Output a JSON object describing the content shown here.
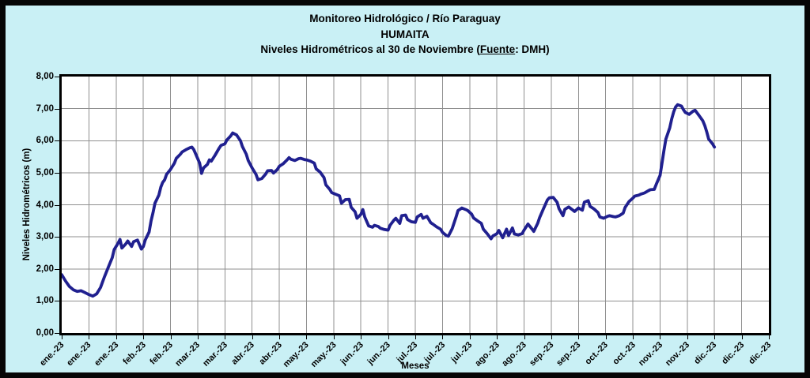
{
  "title": {
    "line1": "Monitoreo Hidrológico / Río Paraguay",
    "line2": "HUMAITA",
    "line3_prefix": "Niveles Hidrométricos  al 30 de Noviembre (",
    "line3_source": "Fuente",
    "line3_suffix": ": DMH)"
  },
  "colors": {
    "background": "#c9f0f5",
    "frame": "#060606",
    "plot_background": "#ffffff",
    "plot_border": "#000000",
    "gridline": "#8f8f8f",
    "line": "#20208f",
    "text": "#000000"
  },
  "chart_data": {
    "type": "line",
    "title": "Monitoreo Hidrológico / Río Paraguay - HUMAITA - Niveles Hidrométricos al 30 de Noviembre (Fuente: DMH)",
    "xlabel": "Meses",
    "ylabel": "Niveles Hidrométricos (m)",
    "ylim": [
      0,
      8
    ],
    "xlim_days": [
      1,
      365
    ],
    "grid": true,
    "legend": false,
    "y_tick_labels": [
      "8,00",
      "7,00",
      "6,00",
      "5,00",
      "4,00",
      "3,00",
      "2,00",
      "1,00",
      "0,00"
    ],
    "x_tick_days": [
      1,
      15,
      29,
      43,
      57,
      71,
      85,
      99,
      113,
      127,
      141,
      155,
      169,
      183,
      197,
      211,
      225,
      239,
      253,
      267,
      281,
      295,
      309,
      323,
      337,
      351,
      365
    ],
    "x_tick_labels": [
      "ene.-23",
      "ene.-23",
      "ene.-23",
      "feb.-23",
      "feb.-23",
      "mar.-23",
      "mar.-23",
      "abr.-23",
      "abr.-23",
      "may.-23",
      "may.-23",
      "jun.-23",
      "jun.-23",
      "jul.-23",
      "jul.-23",
      "jul.-23",
      "ago.-23",
      "ago.-23",
      "sep.-23",
      "sep.-23",
      "oct.-23",
      "oct.-23",
      "nov.-23",
      "nov.-23",
      "dic.-23",
      "dic.-23",
      "dic.-23"
    ],
    "series": [
      {
        "name": "Nivel hidrométrico (m)",
        "points_day_level": [
          [
            1,
            1.82
          ],
          [
            3,
            1.62
          ],
          [
            5,
            1.45
          ],
          [
            7,
            1.35
          ],
          [
            9,
            1.3
          ],
          [
            11,
            1.32
          ],
          [
            13,
            1.26
          ],
          [
            15,
            1.2
          ],
          [
            17,
            1.15
          ],
          [
            19,
            1.22
          ],
          [
            21,
            1.42
          ],
          [
            23,
            1.75
          ],
          [
            25,
            2.05
          ],
          [
            27,
            2.35
          ],
          [
            28,
            2.6
          ],
          [
            30,
            2.8
          ],
          [
            31,
            2.92
          ],
          [
            32,
            2.65
          ],
          [
            34,
            2.78
          ],
          [
            35,
            2.87
          ],
          [
            37,
            2.7
          ],
          [
            38,
            2.85
          ],
          [
            40,
            2.9
          ],
          [
            42,
            2.62
          ],
          [
            43,
            2.7
          ],
          [
            44,
            2.9
          ],
          [
            46,
            3.15
          ],
          [
            47,
            3.5
          ],
          [
            48,
            3.75
          ],
          [
            49,
            4.05
          ],
          [
            51,
            4.3
          ],
          [
            52,
            4.55
          ],
          [
            53,
            4.7
          ],
          [
            54,
            4.78
          ],
          [
            55,
            4.95
          ],
          [
            57,
            5.1
          ],
          [
            59,
            5.3
          ],
          [
            60,
            5.45
          ],
          [
            62,
            5.57
          ],
          [
            63,
            5.65
          ],
          [
            65,
            5.72
          ],
          [
            67,
            5.78
          ],
          [
            68,
            5.8
          ],
          [
            69,
            5.72
          ],
          [
            70,
            5.58
          ],
          [
            72,
            5.3
          ],
          [
            73,
            4.98
          ],
          [
            74,
            5.15
          ],
          [
            76,
            5.26
          ],
          [
            77,
            5.4
          ],
          [
            78,
            5.36
          ],
          [
            80,
            5.55
          ],
          [
            82,
            5.76
          ],
          [
            83,
            5.85
          ],
          [
            85,
            5.9
          ],
          [
            86,
            6.02
          ],
          [
            88,
            6.15
          ],
          [
            89,
            6.24
          ],
          [
            91,
            6.18
          ],
          [
            93,
            6.0
          ],
          [
            94,
            5.82
          ],
          [
            96,
            5.58
          ],
          [
            97,
            5.38
          ],
          [
            99,
            5.15
          ],
          [
            101,
            4.95
          ],
          [
            102,
            4.78
          ],
          [
            104,
            4.82
          ],
          [
            106,
            4.96
          ],
          [
            107,
            5.06
          ],
          [
            109,
            5.07
          ],
          [
            110,
            4.99
          ],
          [
            112,
            5.1
          ],
          [
            113,
            5.2
          ],
          [
            115,
            5.28
          ],
          [
            117,
            5.4
          ],
          [
            118,
            5.47
          ],
          [
            119,
            5.42
          ],
          [
            121,
            5.38
          ],
          [
            123,
            5.44
          ],
          [
            124,
            5.45
          ],
          [
            126,
            5.41
          ],
          [
            127,
            5.4
          ],
          [
            129,
            5.36
          ],
          [
            131,
            5.3
          ],
          [
            132,
            5.12
          ],
          [
            134,
            5.02
          ],
          [
            136,
            4.85
          ],
          [
            137,
            4.62
          ],
          [
            139,
            4.48
          ],
          [
            140,
            4.38
          ],
          [
            142,
            4.33
          ],
          [
            144,
            4.28
          ],
          [
            145,
            4.05
          ],
          [
            147,
            4.16
          ],
          [
            149,
            4.17
          ],
          [
            150,
            3.92
          ],
          [
            152,
            3.78
          ],
          [
            153,
            3.58
          ],
          [
            155,
            3.7
          ],
          [
            156,
            3.85
          ],
          [
            157,
            3.62
          ],
          [
            159,
            3.34
          ],
          [
            161,
            3.3
          ],
          [
            162,
            3.36
          ],
          [
            164,
            3.32
          ],
          [
            165,
            3.27
          ],
          [
            167,
            3.23
          ],
          [
            169,
            3.21
          ],
          [
            170,
            3.36
          ],
          [
            172,
            3.52
          ],
          [
            173,
            3.58
          ],
          [
            175,
            3.42
          ],
          [
            176,
            3.66
          ],
          [
            178,
            3.68
          ],
          [
            179,
            3.54
          ],
          [
            181,
            3.47
          ],
          [
            183,
            3.45
          ],
          [
            184,
            3.62
          ],
          [
            186,
            3.7
          ],
          [
            187,
            3.58
          ],
          [
            189,
            3.64
          ],
          [
            191,
            3.44
          ],
          [
            192,
            3.4
          ],
          [
            194,
            3.31
          ],
          [
            196,
            3.24
          ],
          [
            197,
            3.14
          ],
          [
            199,
            3.04
          ],
          [
            200,
            3.02
          ],
          [
            202,
            3.26
          ],
          [
            204,
            3.62
          ],
          [
            205,
            3.82
          ],
          [
            207,
            3.9
          ],
          [
            209,
            3.85
          ],
          [
            210,
            3.82
          ],
          [
            212,
            3.71
          ],
          [
            213,
            3.59
          ],
          [
            215,
            3.5
          ],
          [
            217,
            3.42
          ],
          [
            218,
            3.24
          ],
          [
            220,
            3.1
          ],
          [
            222,
            2.94
          ],
          [
            223,
            3.03
          ],
          [
            225,
            3.1
          ],
          [
            226,
            3.2
          ],
          [
            228,
            2.97
          ],
          [
            230,
            3.24
          ],
          [
            231,
            3.04
          ],
          [
            233,
            3.28
          ],
          [
            234,
            3.09
          ],
          [
            236,
            3.06
          ],
          [
            238,
            3.1
          ],
          [
            239,
            3.21
          ],
          [
            241,
            3.4
          ],
          [
            243,
            3.25
          ],
          [
            244,
            3.17
          ],
          [
            246,
            3.42
          ],
          [
            247,
            3.6
          ],
          [
            249,
            3.88
          ],
          [
            251,
            4.15
          ],
          [
            252,
            4.22
          ],
          [
            254,
            4.23
          ],
          [
            256,
            4.08
          ],
          [
            257,
            3.88
          ],
          [
            259,
            3.66
          ],
          [
            260,
            3.86
          ],
          [
            262,
            3.93
          ],
          [
            264,
            3.84
          ],
          [
            265,
            3.79
          ],
          [
            267,
            3.9
          ],
          [
            269,
            3.83
          ],
          [
            270,
            4.08
          ],
          [
            272,
            4.13
          ],
          [
            273,
            3.95
          ],
          [
            275,
            3.87
          ],
          [
            277,
            3.76
          ],
          [
            278,
            3.62
          ],
          [
            280,
            3.58
          ],
          [
            282,
            3.64
          ],
          [
            283,
            3.66
          ],
          [
            285,
            3.63
          ],
          [
            286,
            3.62
          ],
          [
            288,
            3.66
          ],
          [
            290,
            3.74
          ],
          [
            291,
            3.92
          ],
          [
            293,
            4.1
          ],
          [
            295,
            4.21
          ],
          [
            296,
            4.27
          ],
          [
            298,
            4.3
          ],
          [
            299,
            4.33
          ],
          [
            301,
            4.37
          ],
          [
            303,
            4.44
          ],
          [
            304,
            4.47
          ],
          [
            306,
            4.48
          ],
          [
            307,
            4.63
          ],
          [
            309,
            4.92
          ],
          [
            310,
            5.3
          ],
          [
            311,
            5.7
          ],
          [
            312,
            6.05
          ],
          [
            314,
            6.4
          ],
          [
            315,
            6.68
          ],
          [
            316,
            6.9
          ],
          [
            317,
            7.05
          ],
          [
            318,
            7.12
          ],
          [
            320,
            7.08
          ],
          [
            321,
            6.97
          ],
          [
            322,
            6.88
          ],
          [
            323,
            6.85
          ],
          [
            324,
            6.82
          ],
          [
            326,
            6.92
          ],
          [
            327,
            6.95
          ],
          [
            328,
            6.87
          ],
          [
            329,
            6.79
          ],
          [
            331,
            6.62
          ],
          [
            332,
            6.47
          ],
          [
            333,
            6.28
          ],
          [
            334,
            6.05
          ],
          [
            336,
            5.9
          ],
          [
            337,
            5.8
          ]
        ]
      }
    ]
  }
}
